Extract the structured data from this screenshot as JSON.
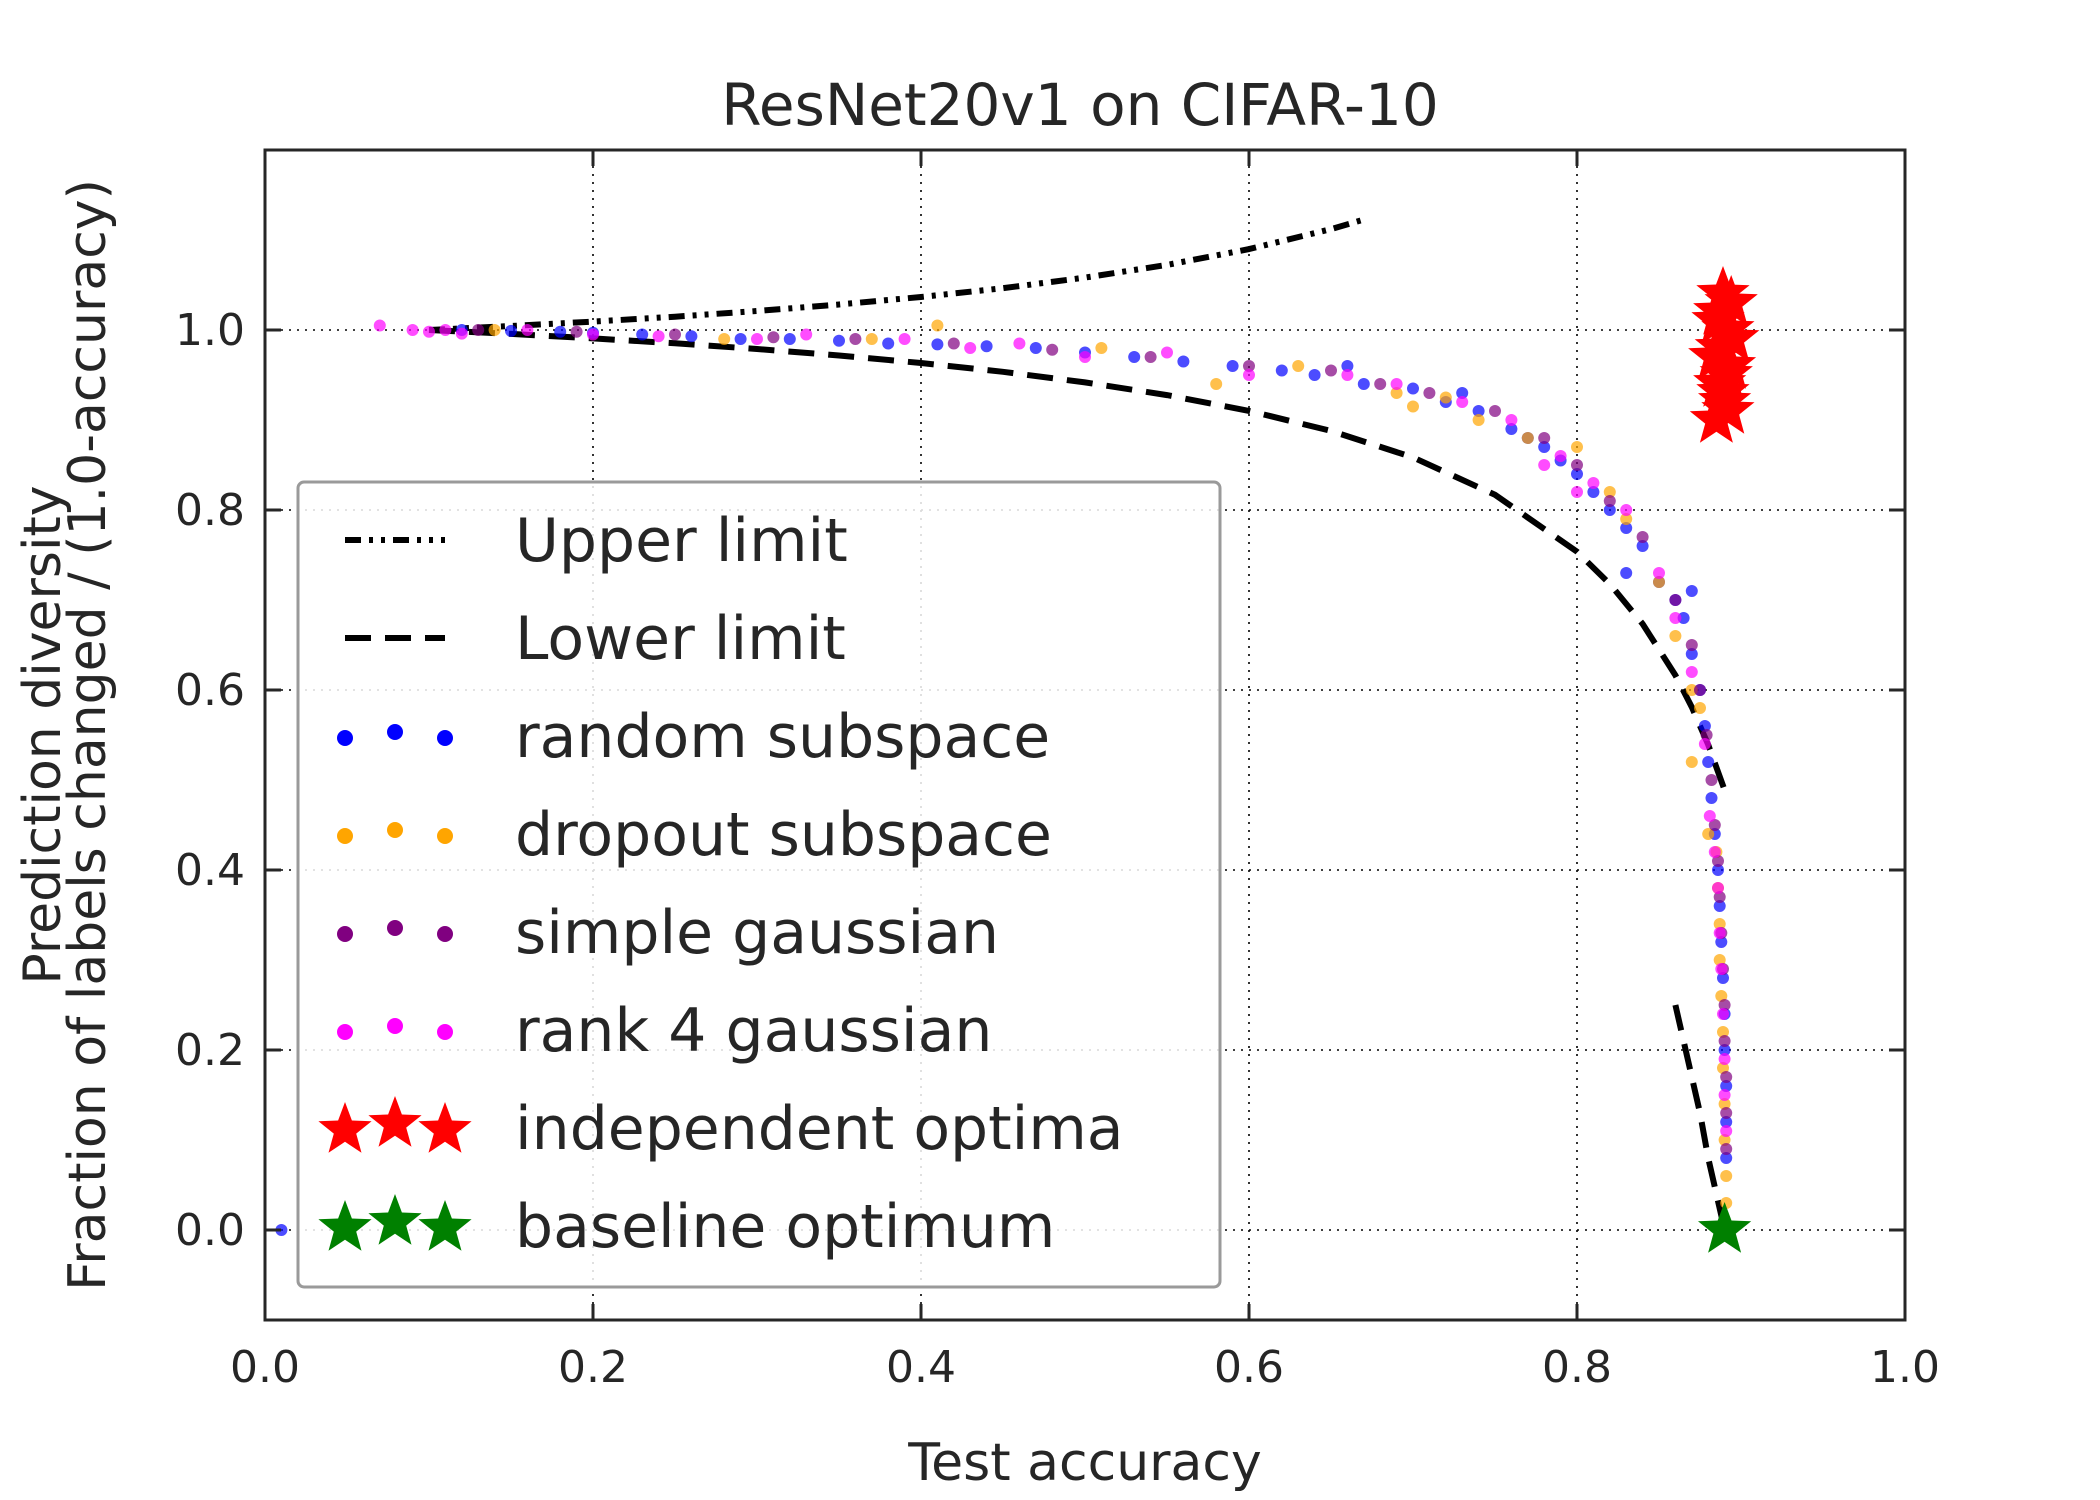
{
  "chart_data": {
    "type": "scatter",
    "title": "ResNet20v1 on CIFAR-10",
    "xlabel": "Test accuracy",
    "ylabel_line1": "Prediction diversity",
    "ylabel_line2": "Fraction of labels changed / (1.0-accuracy)",
    "xlim": [
      0.0,
      1.0
    ],
    "ylim": [
      -0.1,
      1.2
    ],
    "xticks": [
      0.0,
      0.2,
      0.4,
      0.6,
      0.8,
      1.0
    ],
    "xtick_labels": [
      "0.0",
      "0.2",
      "0.4",
      "0.6",
      "0.8",
      "1.0"
    ],
    "yticks": [
      0.0,
      0.2,
      0.4,
      0.6,
      0.8,
      1.0
    ],
    "ytick_labels": [
      "0.0",
      "0.2",
      "0.4",
      "0.6",
      "0.8",
      "1.0"
    ],
    "grid": true,
    "legend_position": "lower-left",
    "baseline_accuracy": 0.89,
    "lines": [
      {
        "name": "Upper limit",
        "style": "dashdot",
        "color": "#000000",
        "x": [
          0.1,
          0.15,
          0.2,
          0.25,
          0.3,
          0.35,
          0.4,
          0.45,
          0.5,
          0.55,
          0.6,
          0.65,
          0.67
        ],
        "y": [
          1.0,
          1.0044,
          1.0093,
          1.0148,
          1.0211,
          1.0283,
          1.0367,
          1.0465,
          1.0582,
          1.0723,
          1.0899,
          1.1121,
          1.1227
        ]
      },
      {
        "name": "Lower limit",
        "style": "dashed",
        "color": "#000000",
        "x": [
          0.1,
          0.15,
          0.2,
          0.25,
          0.3,
          0.35,
          0.4,
          0.45,
          0.5,
          0.55,
          0.6,
          0.65,
          0.7,
          0.75,
          0.8,
          0.82,
          0.84,
          0.86,
          0.87,
          0.88,
          0.89
        ],
        "y": [
          1.0,
          0.9957,
          0.9907,
          0.9852,
          0.9789,
          0.9717,
          0.9633,
          0.9535,
          0.9418,
          0.9277,
          0.9101,
          0.8879,
          0.8584,
          0.8169,
          0.7537,
          0.7179,
          0.6734,
          0.6164,
          0.581,
          0.5392,
          0.4889
        ]
      },
      {
        "name": "Lower limit tail",
        "style": "dashed",
        "color": "#000000",
        "x": [
          0.86,
          0.87,
          0.875,
          0.88,
          0.885,
          0.89
        ],
        "y": [
          0.25,
          0.17,
          0.13,
          0.08,
          0.04,
          0.0
        ]
      }
    ],
    "scatter_series": [
      {
        "name": "random subspace",
        "color": "#0000ff",
        "points": [
          [
            0.01,
            0.0
          ],
          [
            0.12,
            1.0
          ],
          [
            0.15,
            0.999
          ],
          [
            0.18,
            0.998
          ],
          [
            0.2,
            0.997
          ],
          [
            0.23,
            0.995
          ],
          [
            0.26,
            0.993
          ],
          [
            0.29,
            0.99
          ],
          [
            0.32,
            0.99
          ],
          [
            0.35,
            0.988
          ],
          [
            0.38,
            0.985
          ],
          [
            0.41,
            0.984
          ],
          [
            0.44,
            0.982
          ],
          [
            0.47,
            0.98
          ],
          [
            0.5,
            0.975
          ],
          [
            0.53,
            0.97
          ],
          [
            0.56,
            0.965
          ],
          [
            0.59,
            0.96
          ],
          [
            0.62,
            0.955
          ],
          [
            0.64,
            0.95
          ],
          [
            0.67,
            0.94
          ],
          [
            0.7,
            0.935
          ],
          [
            0.72,
            0.92
          ],
          [
            0.74,
            0.91
          ],
          [
            0.76,
            0.89
          ],
          [
            0.78,
            0.87
          ],
          [
            0.79,
            0.855
          ],
          [
            0.8,
            0.84
          ],
          [
            0.81,
            0.82
          ],
          [
            0.82,
            0.8
          ],
          [
            0.83,
            0.78
          ],
          [
            0.84,
            0.76
          ],
          [
            0.85,
            0.72
          ],
          [
            0.86,
            0.7
          ],
          [
            0.865,
            0.68
          ],
          [
            0.87,
            0.64
          ],
          [
            0.875,
            0.6
          ],
          [
            0.878,
            0.56
          ],
          [
            0.88,
            0.52
          ],
          [
            0.882,
            0.48
          ],
          [
            0.884,
            0.44
          ],
          [
            0.886,
            0.4
          ],
          [
            0.887,
            0.36
          ],
          [
            0.888,
            0.32
          ],
          [
            0.889,
            0.28
          ],
          [
            0.89,
            0.24
          ],
          [
            0.89,
            0.2
          ],
          [
            0.891,
            0.16
          ],
          [
            0.891,
            0.12
          ],
          [
            0.891,
            0.08
          ],
          [
            0.66,
            0.96
          ],
          [
            0.73,
            0.93
          ],
          [
            0.77,
            0.88
          ],
          [
            0.83,
            0.73
          ],
          [
            0.87,
            0.71
          ]
        ]
      },
      {
        "name": "dropout subspace",
        "color": "#ffa500",
        "points": [
          [
            0.14,
            1.0
          ],
          [
            0.28,
            0.99
          ],
          [
            0.37,
            0.99
          ],
          [
            0.41,
            1.005
          ],
          [
            0.51,
            0.98
          ],
          [
            0.58,
            0.94
          ],
          [
            0.63,
            0.96
          ],
          [
            0.69,
            0.93
          ],
          [
            0.7,
            0.915
          ],
          [
            0.72,
            0.925
          ],
          [
            0.74,
            0.9
          ],
          [
            0.77,
            0.88
          ],
          [
            0.8,
            0.87
          ],
          [
            0.82,
            0.82
          ],
          [
            0.83,
            0.79
          ],
          [
            0.85,
            0.72
          ],
          [
            0.86,
            0.66
          ],
          [
            0.87,
            0.6
          ],
          [
            0.875,
            0.58
          ],
          [
            0.87,
            0.52
          ],
          [
            0.88,
            0.44
          ],
          [
            0.885,
            0.42
          ],
          [
            0.886,
            0.38
          ],
          [
            0.887,
            0.34
          ],
          [
            0.887,
            0.3
          ],
          [
            0.888,
            0.26
          ],
          [
            0.889,
            0.22
          ],
          [
            0.889,
            0.18
          ],
          [
            0.89,
            0.14
          ],
          [
            0.89,
            0.1
          ],
          [
            0.891,
            0.06
          ],
          [
            0.891,
            0.03
          ]
        ]
      },
      {
        "name": "simple gaussian",
        "color": "#800080",
        "points": [
          [
            0.13,
            1.0
          ],
          [
            0.19,
            0.998
          ],
          [
            0.25,
            0.995
          ],
          [
            0.31,
            0.992
          ],
          [
            0.36,
            0.99
          ],
          [
            0.42,
            0.985
          ],
          [
            0.48,
            0.978
          ],
          [
            0.54,
            0.97
          ],
          [
            0.6,
            0.96
          ],
          [
            0.65,
            0.955
          ],
          [
            0.68,
            0.94
          ],
          [
            0.71,
            0.93
          ],
          [
            0.75,
            0.91
          ],
          [
            0.78,
            0.88
          ],
          [
            0.8,
            0.85
          ],
          [
            0.82,
            0.81
          ],
          [
            0.84,
            0.77
          ],
          [
            0.86,
            0.7
          ],
          [
            0.87,
            0.65
          ],
          [
            0.875,
            0.6
          ],
          [
            0.879,
            0.55
          ],
          [
            0.882,
            0.5
          ],
          [
            0.884,
            0.45
          ],
          [
            0.886,
            0.41
          ],
          [
            0.887,
            0.37
          ],
          [
            0.888,
            0.33
          ],
          [
            0.889,
            0.29
          ],
          [
            0.89,
            0.25
          ],
          [
            0.89,
            0.21
          ],
          [
            0.891,
            0.17
          ],
          [
            0.891,
            0.13
          ],
          [
            0.891,
            0.09
          ]
        ]
      },
      {
        "name": "rank 4 gaussian",
        "color": "#ff00ff",
        "points": [
          [
            0.07,
            1.005
          ],
          [
            0.09,
            1.0
          ],
          [
            0.1,
            0.998
          ],
          [
            0.11,
            1.0
          ],
          [
            0.12,
            0.996
          ],
          [
            0.16,
            1.0
          ],
          [
            0.2,
            0.995
          ],
          [
            0.24,
            0.993
          ],
          [
            0.3,
            0.99
          ],
          [
            0.33,
            0.995
          ],
          [
            0.39,
            0.99
          ],
          [
            0.43,
            0.98
          ],
          [
            0.46,
            0.985
          ],
          [
            0.5,
            0.97
          ],
          [
            0.55,
            0.975
          ],
          [
            0.6,
            0.95
          ],
          [
            0.66,
            0.95
          ],
          [
            0.69,
            0.94
          ],
          [
            0.73,
            0.92
          ],
          [
            0.76,
            0.9
          ],
          [
            0.79,
            0.86
          ],
          [
            0.81,
            0.83
          ],
          [
            0.83,
            0.8
          ],
          [
            0.85,
            0.73
          ],
          [
            0.86,
            0.68
          ],
          [
            0.87,
            0.62
          ],
          [
            0.878,
            0.54
          ],
          [
            0.881,
            0.46
          ],
          [
            0.884,
            0.42
          ],
          [
            0.886,
            0.38
          ],
          [
            0.887,
            0.33
          ],
          [
            0.888,
            0.29
          ],
          [
            0.889,
            0.24
          ],
          [
            0.89,
            0.19
          ],
          [
            0.89,
            0.15
          ],
          [
            0.891,
            0.11
          ],
          [
            0.78,
            0.85
          ],
          [
            0.8,
            0.82
          ]
        ]
      }
    ],
    "star_series": [
      {
        "name": "independent optima",
        "color": "#ff0000",
        "points": [
          [
            0.885,
            0.9
          ],
          [
            0.89,
            0.92
          ],
          [
            0.887,
            0.94
          ],
          [
            0.893,
            0.96
          ],
          [
            0.888,
            0.98
          ],
          [
            0.892,
            1.0
          ],
          [
            0.886,
            1.01
          ],
          [
            0.894,
            1.03
          ],
          [
            0.889,
            0.93
          ],
          [
            0.891,
            0.95
          ],
          [
            0.884,
            0.97
          ],
          [
            0.895,
            0.99
          ],
          [
            0.887,
            1.02
          ],
          [
            0.892,
            0.91
          ],
          [
            0.889,
            1.04
          ]
        ]
      },
      {
        "name": "baseline optimum",
        "color": "#008000",
        "points": [
          [
            0.89,
            0.0
          ]
        ]
      }
    ],
    "legend": [
      {
        "label": "Upper limit",
        "kind": "dashdot",
        "color": "#000000"
      },
      {
        "label": "Lower limit",
        "kind": "dashed",
        "color": "#000000"
      },
      {
        "label": "random subspace",
        "kind": "dots",
        "color": "#0000ff"
      },
      {
        "label": "dropout subspace",
        "kind": "dots",
        "color": "#ffa500"
      },
      {
        "label": "simple gaussian",
        "kind": "dots",
        "color": "#800080"
      },
      {
        "label": "rank 4 gaussian",
        "kind": "dots",
        "color": "#ff00ff"
      },
      {
        "label": "independent optima",
        "kind": "stars",
        "color": "#ff0000"
      },
      {
        "label": "baseline optimum",
        "kind": "stars",
        "color": "#008000"
      }
    ]
  }
}
